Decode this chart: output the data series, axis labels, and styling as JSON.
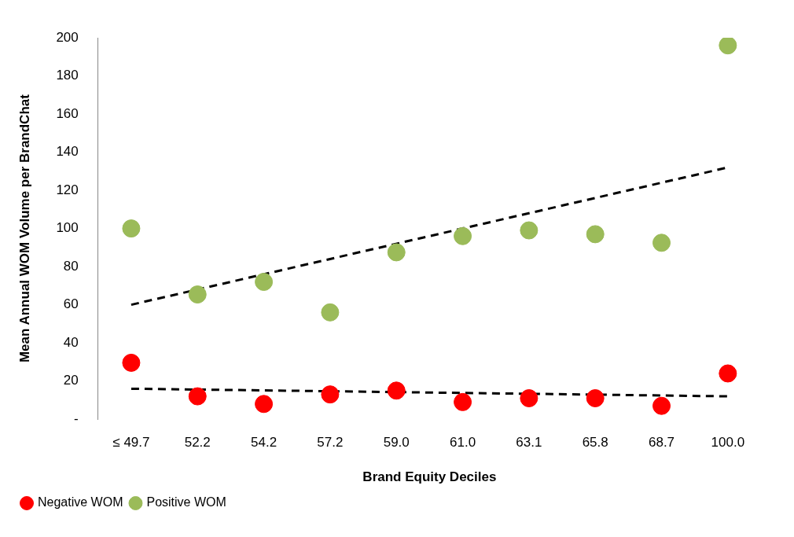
{
  "chart_data": {
    "type": "scatter",
    "xlabel": "Brand Equity Deciles",
    "ylabel": "Mean Annual WOM Volume per BrandChat",
    "categories": [
      "≤ 49.7",
      "52.2",
      "54.2",
      "57.2",
      "59.0",
      "61.0",
      "63.1",
      "65.8",
      "68.7",
      "100.0"
    ],
    "series": [
      {
        "name": "Negative WOM",
        "color": "#ff0000",
        "values": [
          29.6,
          12,
          8,
          13,
          15,
          9,
          11,
          11,
          7,
          24
        ]
      },
      {
        "name": "Positive WOM",
        "color": "#9bbb59",
        "values": [
          100,
          65.4,
          72,
          56,
          87.5,
          96,
          99,
          97,
          92.5,
          196
        ]
      },
      {
        "type": "line",
        "color": "#000000",
        "line_style": "dashed",
        "marker": "none",
        "x": [
          "≤ 49.7",
          "100.0"
        ],
        "values": [
          60,
          132
        ]
      },
      {
        "type": "line",
        "color": "#000000",
        "line_style": "dashed",
        "marker": "none",
        "x": [
          "≤ 49.7",
          "100.0"
        ],
        "values": [
          16,
          12
        ]
      }
    ],
    "ylim": [
      0,
      200
    ],
    "yticks": [
      {
        "value": 0,
        "label": "-"
      },
      20,
      40,
      60,
      80,
      100,
      120,
      140,
      160,
      180,
      200
    ],
    "grid": false,
    "legend": "bottom left",
    "marker": "circle"
  }
}
